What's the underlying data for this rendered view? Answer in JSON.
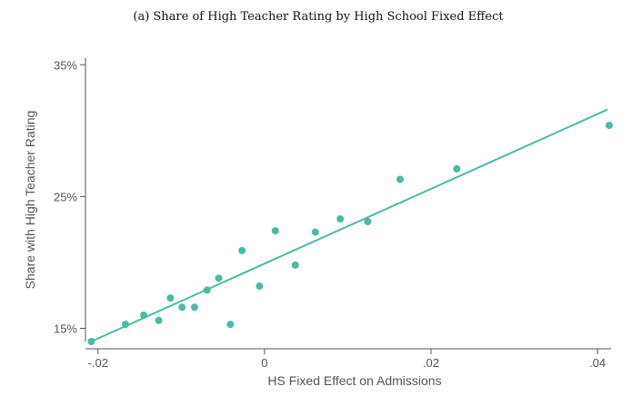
{
  "chart_data": {
    "type": "scatter",
    "title": "(a) Share of High Teacher Rating by High School Fixed Effect",
    "xlabel": "HS Fixed Effect on Admissions",
    "ylabel": "Share with High Teacher Rating",
    "xlim": [
      -0.0215,
      0.0425
    ],
    "ylim": [
      0.14,
      0.355
    ],
    "x_ticks": [
      {
        "value": -0.02,
        "label": "-.02"
      },
      {
        "value": 0,
        "label": "0"
      },
      {
        "value": 0.02,
        "label": ".02"
      },
      {
        "value": 0.04,
        "label": ".04"
      }
    ],
    "y_ticks": [
      {
        "value": 0.15,
        "label": "15%"
      },
      {
        "value": 0.25,
        "label": "25%"
      },
      {
        "value": 0.35,
        "label": "35%"
      }
    ],
    "points": [
      {
        "x": -0.0208,
        "y": 0.14
      },
      {
        "x": -0.0167,
        "y": 0.153
      },
      {
        "x": -0.0145,
        "y": 0.16
      },
      {
        "x": -0.0127,
        "y": 0.156
      },
      {
        "x": -0.0113,
        "y": 0.173
      },
      {
        "x": -0.0099,
        "y": 0.166
      },
      {
        "x": -0.0084,
        "y": 0.166
      },
      {
        "x": -0.0069,
        "y": 0.179
      },
      {
        "x": -0.0055,
        "y": 0.188
      },
      {
        "x": -0.0041,
        "y": 0.153
      },
      {
        "x": -0.0027,
        "y": 0.209
      },
      {
        "x": -0.0006,
        "y": 0.182
      },
      {
        "x": 0.0013,
        "y": 0.224
      },
      {
        "x": 0.0037,
        "y": 0.198
      },
      {
        "x": 0.0061,
        "y": 0.223
      },
      {
        "x": 0.0091,
        "y": 0.233
      },
      {
        "x": 0.0124,
        "y": 0.231
      },
      {
        "x": 0.0163,
        "y": 0.263
      },
      {
        "x": 0.0231,
        "y": 0.271
      },
      {
        "x": 0.0414,
        "y": 0.304
      }
    ],
    "fit_line": {
      "x": [
        -0.0208,
        0.0412
      ],
      "y": [
        0.14,
        0.316
      ]
    },
    "colors": {
      "marker": "#4db8a6",
      "line": "#4db8a6",
      "axis": "#555555",
      "text": "#555555"
    }
  }
}
